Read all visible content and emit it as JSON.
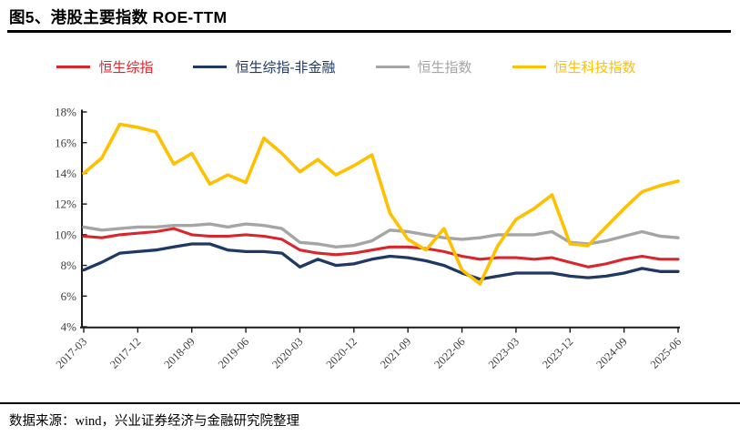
{
  "page": {
    "title": "图5、港股主要指数 ROE-TTM",
    "source_note": "数据来源：wind，兴业证券经济与金融研究院整理"
  },
  "chart_data": {
    "type": "line",
    "title": "港股主要指数 ROE-TTM",
    "figure_label": "图5",
    "grid": false,
    "legend_position": "top",
    "x": [
      "2017-03",
      "2017-06",
      "2017-09",
      "2017-12",
      "2018-03",
      "2018-06",
      "2018-09",
      "2018-12",
      "2019-03",
      "2019-06",
      "2019-09",
      "2019-12",
      "2020-03",
      "2020-06",
      "2020-09",
      "2020-12",
      "2021-03",
      "2021-06",
      "2021-09",
      "2021-12",
      "2022-03",
      "2022-06",
      "2022-09",
      "2022-12",
      "2023-03",
      "2023-06",
      "2023-09",
      "2023-12",
      "2024-03",
      "2024-06",
      "2024-09",
      "2024-12",
      "2025-03",
      "2025-06"
    ],
    "x_axis_tick_labels": [
      "2017-03",
      "2017-12",
      "2018-09",
      "2019-06",
      "2020-03",
      "2020-12",
      "2021-09",
      "2022-06",
      "2023-03",
      "2023-12",
      "2024-09",
      "2025-06"
    ],
    "y_axis": {
      "min": 4,
      "max": 18,
      "step": 2,
      "format": "percent",
      "tick_labels": [
        "4%",
        "6%",
        "8%",
        "10%",
        "12%",
        "14%",
        "16%",
        "18%"
      ]
    },
    "series": [
      {
        "name": "恒生综指",
        "color": "#d9262c",
        "values": [
          9.9,
          9.8,
          10.0,
          10.1,
          10.2,
          10.4,
          10.0,
          9.9,
          9.9,
          10.0,
          9.9,
          9.7,
          9.0,
          8.8,
          8.7,
          8.8,
          9.0,
          9.2,
          9.2,
          9.1,
          8.9,
          8.6,
          8.4,
          8.5,
          8.5,
          8.4,
          8.5,
          8.2,
          7.9,
          8.1,
          8.4,
          8.6,
          8.4,
          8.4
        ]
      },
      {
        "name": "恒生综指-非金融",
        "color": "#1f3864",
        "values": [
          7.7,
          8.2,
          8.8,
          8.9,
          9.0,
          9.2,
          9.4,
          9.4,
          9.0,
          8.9,
          8.9,
          8.8,
          7.9,
          8.4,
          8.0,
          8.1,
          8.4,
          8.6,
          8.5,
          8.3,
          8.0,
          7.5,
          7.1,
          7.3,
          7.5,
          7.5,
          7.5,
          7.3,
          7.2,
          7.3,
          7.5,
          7.8,
          7.6,
          7.6
        ]
      },
      {
        "name": "恒生指数",
        "color": "#a5a5a5",
        "values": [
          10.5,
          10.3,
          10.4,
          10.5,
          10.5,
          10.6,
          10.6,
          10.7,
          10.5,
          10.7,
          10.6,
          10.4,
          9.5,
          9.4,
          9.2,
          9.3,
          9.6,
          10.3,
          10.2,
          10.0,
          9.8,
          9.7,
          9.8,
          10.0,
          10.0,
          10.0,
          10.2,
          9.5,
          9.4,
          9.6,
          9.9,
          10.2,
          9.9,
          9.8
        ]
      },
      {
        "name": "恒生科技指数",
        "color": "#ffc000",
        "values": [
          14.0,
          15.0,
          17.2,
          17.0,
          16.7,
          14.6,
          15.3,
          13.3,
          13.9,
          13.4,
          16.3,
          15.3,
          14.1,
          14.9,
          13.9,
          14.5,
          15.2,
          11.4,
          9.7,
          9.0,
          10.4,
          7.7,
          6.8,
          9.3,
          11.0,
          11.7,
          12.6,
          9.4,
          9.3,
          10.5,
          11.7,
          12.8,
          13.2,
          13.5
        ]
      }
    ]
  }
}
